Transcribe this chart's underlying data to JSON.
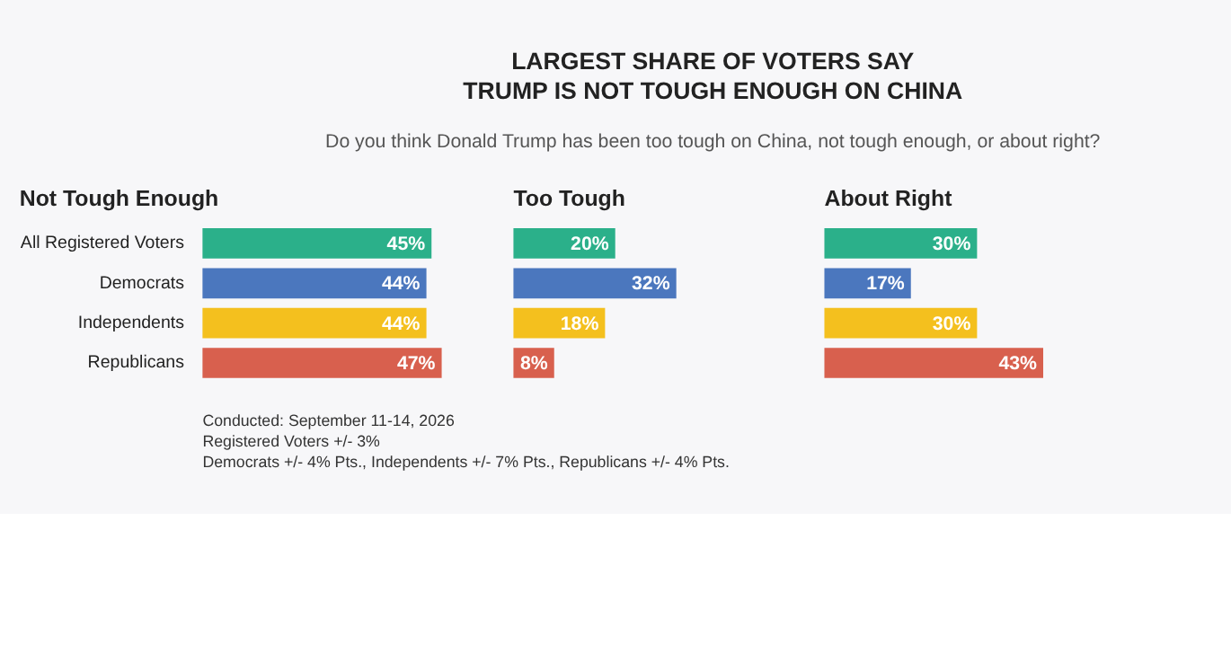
{
  "chart_data": [
    {
      "type": "other",
      "title": "LARGEST SHARE OF VOTERS SAY\nTRUMP IS NOT TOUGH ENOUGH ON CHINA",
      "subtitle": "Do you think Donald Trump has been too tough on China, not tough enough, or about right?"
    },
    {
      "type": "bar",
      "orientation": "horizontal",
      "title": "Not Tough Enough",
      "categories": [
        "All Registered Voters",
        "Democrats",
        "Independents",
        "Republicans"
      ],
      "values": [
        45,
        44,
        44,
        47
      ],
      "value_labels": [
        "45%",
        "44%",
        "44%",
        "47%"
      ],
      "colors": [
        "#2bb08a",
        "#4b77be",
        "#f4c01e",
        "#d8604e"
      ],
      "tick_labels": "y"
    },
    {
      "type": "bar",
      "orientation": "horizontal",
      "title": "Too Tough",
      "categories": [
        null,
        null,
        null,
        null
      ],
      "values": [
        20,
        32,
        18,
        8
      ],
      "value_labels": [
        "20%",
        "32%",
        "18%",
        "8%"
      ],
      "colors": [
        "#2bb08a",
        "#4b77be",
        "#f4c01e",
        "#d8604e"
      ],
      "tick_labels": false
    },
    {
      "type": "bar",
      "orientation": "horizontal",
      "title": "About Right",
      "categories": [
        null,
        null,
        null,
        null
      ],
      "values": [
        30,
        17,
        30,
        43
      ],
      "value_labels": [
        "30%",
        "17%",
        "30%",
        "43%"
      ],
      "colors": [
        "#2bb08a",
        "#4b77be",
        "#f4c01e",
        "#d8604e"
      ],
      "tick_labels": false
    },
    {
      "type": "other",
      "annotations": [
        "Conducted: September 11-14, 2026",
        "Registered Voters +/- 3%",
        "Democrats +/- 4% Pts., Independents +/- 7% Pts., Republicans +/- 4% Pts."
      ]
    }
  ]
}
